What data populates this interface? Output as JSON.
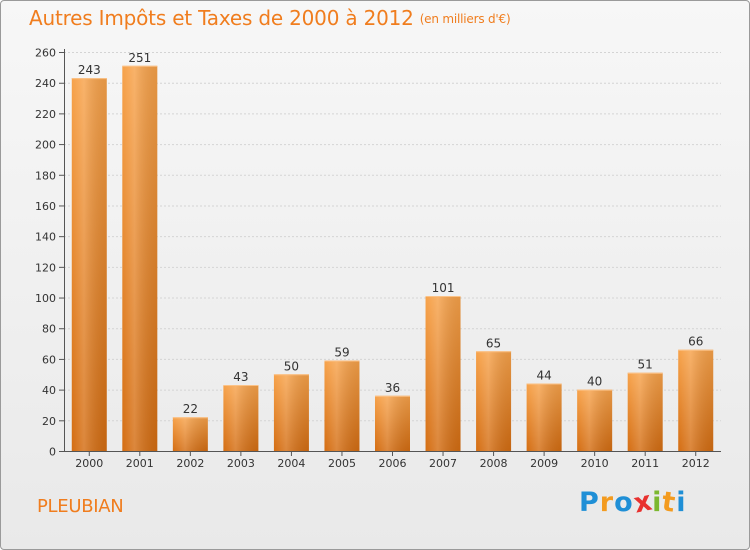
{
  "title": "Autres Impôts et Taxes de 2000 à 2012",
  "unit": "(en milliers d'€)",
  "commune": "PLEUBIAN",
  "logo": {
    "letters": [
      "P",
      "r",
      "o",
      "x",
      "i",
      "t",
      "i"
    ],
    "colors": [
      "#1f8fd6",
      "#f39b1f",
      "#1f8fd6",
      "#e8312f",
      "#7cb82f",
      "#f39b1f",
      "#1f8fd6"
    ]
  },
  "colors": {
    "bar_light": "#f7a24a",
    "bar_dark": "#d46d12",
    "accent": "#f07d1e"
  },
  "chart_data": {
    "type": "bar",
    "categories": [
      "2000",
      "2001",
      "2002",
      "2003",
      "2004",
      "2005",
      "2006",
      "2007",
      "2008",
      "2009",
      "2010",
      "2011",
      "2012"
    ],
    "values": [
      243,
      251,
      22,
      43,
      50,
      59,
      36,
      101,
      65,
      44,
      40,
      51,
      66
    ],
    "data_labels": [
      "243",
      "251",
      "22",
      "43",
      "50",
      "59",
      "36",
      "101",
      "65",
      "44",
      "40",
      "51",
      "66"
    ],
    "ylim": [
      0,
      260
    ],
    "yticks": [
      0,
      20,
      40,
      60,
      80,
      100,
      120,
      140,
      160,
      180,
      200,
      220,
      240,
      260
    ],
    "grid": true
  }
}
